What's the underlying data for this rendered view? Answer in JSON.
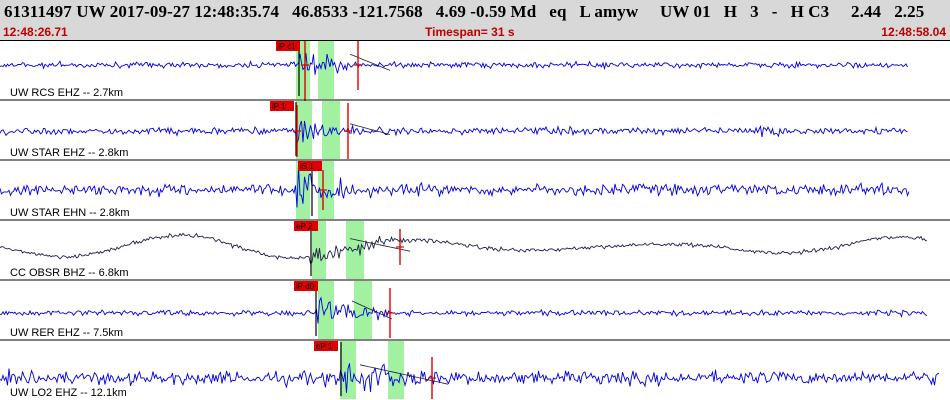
{
  "header": {
    "event_line": "61311497 UW 2017-09-27 12:48:35.74   46.8533 -121.7568   4.69 -0.59 Md   eq   L amyw     UW 01   H   3   -   H C3     2.44   2.25",
    "start_time": "12:48:26.71",
    "timespan": "Timespan=  31 s",
    "end_time": "12:48:58.04"
  },
  "colors": {
    "header_bg": "#d8d8d8",
    "time_text": "#c00000",
    "trace": "#0000e0",
    "trace_dark": "#20204a",
    "pick_line": "#e00000",
    "pick_box": "#e00000",
    "window_band": "#90ee90"
  },
  "traces": [
    {
      "label": "UW RCS EHZ -- 2.7km",
      "pick": "iP c1",
      "color_role": "trace"
    },
    {
      "label": "UW STAR EHZ -- 2.8km",
      "pick": "iP 1",
      "color_role": "trace"
    },
    {
      "label": "UW STAR EHN -- 2.8km",
      "pick": "iS 1",
      "color_role": "trace"
    },
    {
      "label": "CC OBSR BHZ -- 6.8km",
      "pick": "eP 2",
      "color_role": "trace_dark"
    },
    {
      "label": "UW RER EHZ -- 7.5km",
      "pick": "iP d0",
      "color_role": "trace"
    },
    {
      "label": "UW LO2 EHZ -- 12.1km",
      "pick": "eP 1",
      "color_role": "trace"
    }
  ]
}
